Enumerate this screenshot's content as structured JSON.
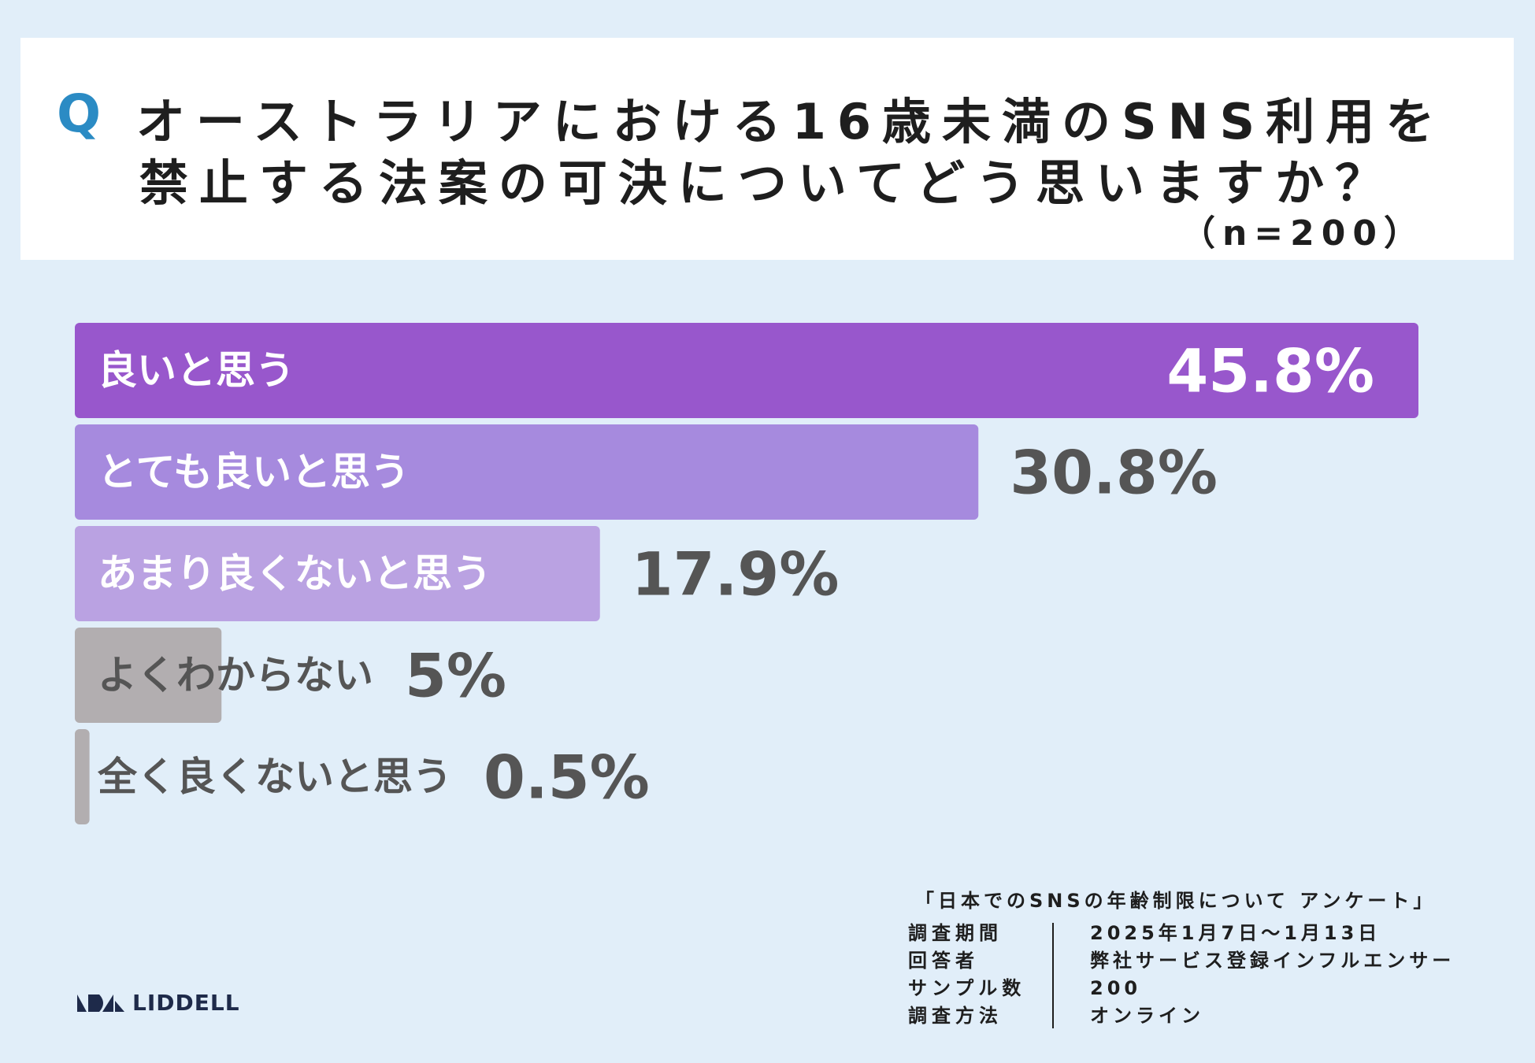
{
  "question": {
    "q_mark": "Q",
    "line1": "オーストラリアにおける16歳未満のSNS利用を",
    "line2": "禁止する法案の可決についてどう思いますか？",
    "sample": "（n=200）"
  },
  "chart_data": {
    "type": "bar",
    "orientation": "horizontal",
    "categories": [
      "良いと思う",
      "とても良いと思う",
      "あまり良くないと思う",
      "よくわからない",
      "全く良くないと思う"
    ],
    "values": [
      45.8,
      30.8,
      17.9,
      5,
      0.5
    ],
    "value_labels": [
      "45.8%",
      "30.8%",
      "17.9%",
      "5%",
      "0.5%"
    ],
    "colors": [
      "#9857cc",
      "#a68ade",
      "#baa2e2",
      "#b2aeb0",
      "#b2aeb0"
    ],
    "value_label_colors": [
      "#ffffff",
      "#555555",
      "#555555",
      "#555555",
      "#555555"
    ],
    "category_label_colors": [
      "#ffffff",
      "#ffffff",
      "#ffffff",
      "#555555",
      "#555555"
    ],
    "xlim": [
      0,
      45.8
    ]
  },
  "footer": {
    "survey_title": "「日本でのSNSの年齢制限について アンケート」",
    "keys": [
      "調査期間",
      "回答者",
      "サンプル数",
      "調査方法"
    ],
    "values": [
      "2025年1月7日～1月13日",
      "弊社サービス登録インフルエンサー",
      "200",
      "オンライン"
    ]
  },
  "logo": {
    "text": "LIDDELL"
  }
}
